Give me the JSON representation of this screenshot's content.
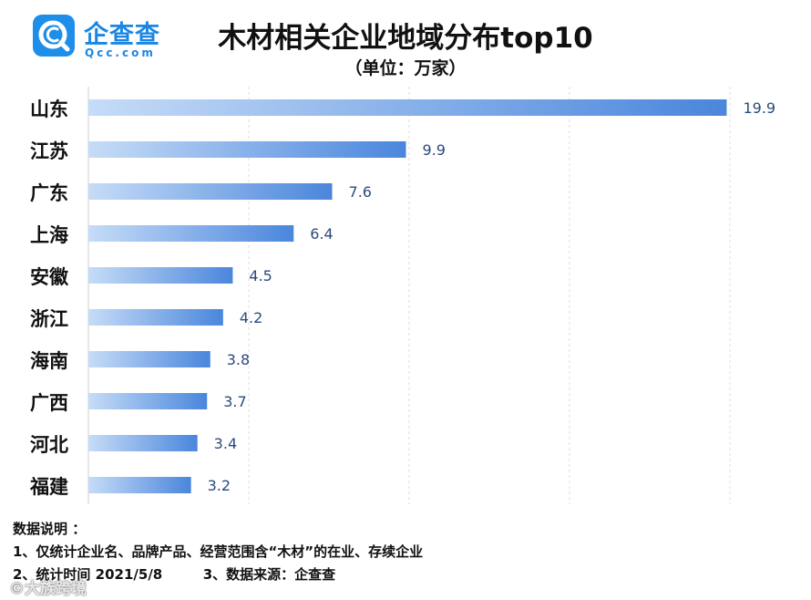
{
  "logo": {
    "name": "企查查",
    "domain": "Qcc.com"
  },
  "chart_data": {
    "type": "bar",
    "orientation": "horizontal",
    "title": "木材相关企业地域分布top10",
    "subtitle": "（单位：万家）",
    "unit": "万家",
    "categories": [
      "山东",
      "江苏",
      "广东",
      "上海",
      "安徽",
      "浙江",
      "海南",
      "广西",
      "河北",
      "福建"
    ],
    "values": [
      19.9,
      9.9,
      7.6,
      6.4,
      4.5,
      4.2,
      3.8,
      3.7,
      3.4,
      3.2
    ],
    "xlim": [
      0,
      20
    ],
    "grid": true,
    "bar_gradient": [
      "#c6dcf7",
      "#4a86dc"
    ],
    "label_color": "#2b4a7e"
  },
  "notes": {
    "heading": "数据说明 ：",
    "line1": "1、仅统计企业名、品牌产品、经营范围含“木材”的在业、存续企业",
    "line2a": "2、统计时间 2021/5/8",
    "line2b": "3、数据来源：企查查"
  },
  "watermark": "©大族跨境"
}
